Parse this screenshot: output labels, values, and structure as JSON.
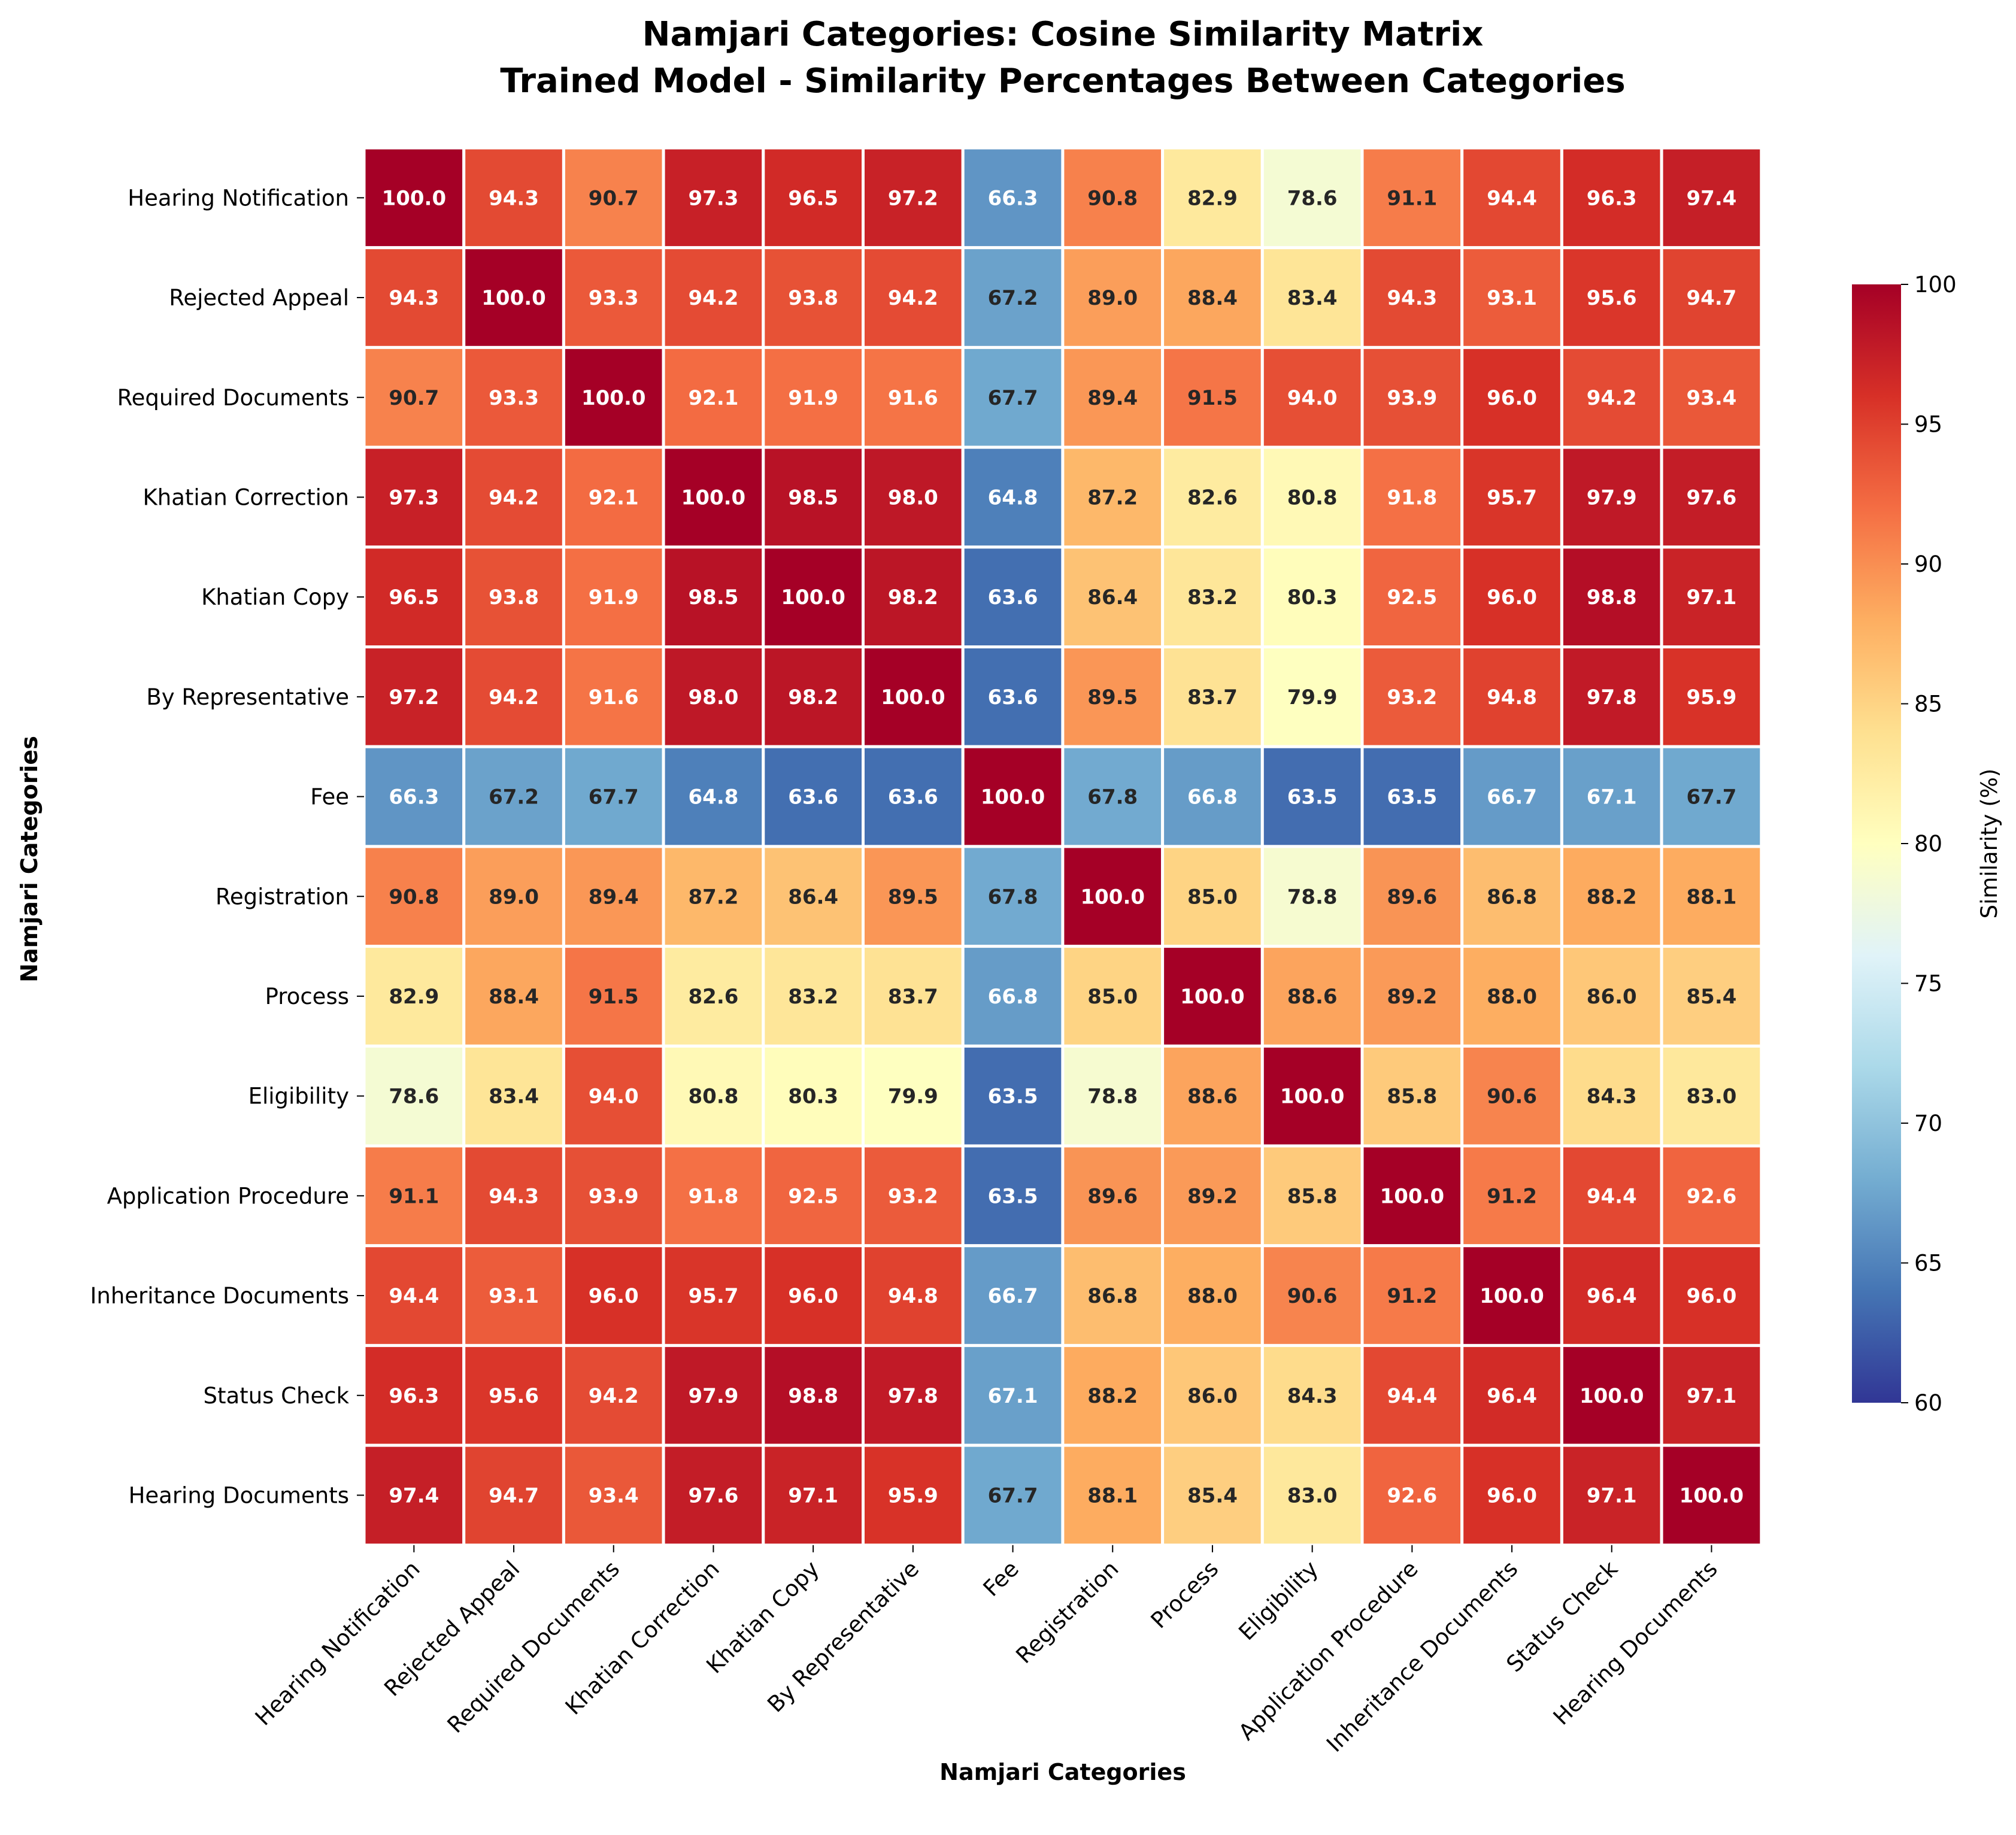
{
  "chart_data": {
    "type": "heatmap",
    "title": "Namjari Categories: Cosine Similarity Matrix",
    "subtitle": "Trained Model - Similarity Percentages Between Categories",
    "xlabel": "Namjari Categories",
    "ylabel": "Namjari Categories",
    "colorbar_label": "Similarity (%)",
    "colormap": "RdYlBu_r",
    "vmin": 60,
    "vmax": 100,
    "colorbar_ticks": [
      60,
      65,
      70,
      75,
      80,
      85,
      90,
      95,
      100
    ],
    "categories": [
      "Hearing Notification",
      "Rejected Appeal",
      "Required Documents",
      "Khatian Correction",
      "Khatian Copy",
      "By Representative",
      "Fee",
      "Registration",
      "Process",
      "Eligibility",
      "Application Procedure",
      "Inheritance Documents",
      "Status Check",
      "Hearing Documents"
    ],
    "values": [
      [
        100.0,
        94.3,
        90.7,
        97.3,
        96.5,
        97.2,
        66.3,
        90.8,
        82.9,
        78.6,
        91.1,
        94.4,
        96.3,
        97.4
      ],
      [
        94.3,
        100.0,
        93.3,
        94.2,
        93.8,
        94.2,
        67.2,
        89.0,
        88.4,
        83.4,
        94.3,
        93.1,
        95.6,
        94.7
      ],
      [
        90.7,
        93.3,
        100.0,
        92.1,
        91.9,
        91.6,
        67.7,
        89.4,
        91.5,
        94.0,
        93.9,
        96.0,
        94.2,
        93.4
      ],
      [
        97.3,
        94.2,
        92.1,
        100.0,
        98.5,
        98.0,
        64.8,
        87.2,
        82.6,
        80.8,
        91.8,
        95.7,
        97.9,
        97.6
      ],
      [
        96.5,
        93.8,
        91.9,
        98.5,
        100.0,
        98.2,
        63.6,
        86.4,
        83.2,
        80.3,
        92.5,
        96.0,
        98.8,
        97.1
      ],
      [
        97.2,
        94.2,
        91.6,
        98.0,
        98.2,
        100.0,
        63.6,
        89.5,
        83.7,
        79.9,
        93.2,
        94.8,
        97.8,
        95.9
      ],
      [
        66.3,
        67.2,
        67.7,
        64.8,
        63.6,
        63.6,
        100.0,
        67.8,
        66.8,
        63.5,
        63.5,
        66.7,
        67.1,
        67.7
      ],
      [
        90.8,
        89.0,
        89.4,
        87.2,
        86.4,
        89.5,
        67.8,
        100.0,
        85.0,
        78.8,
        89.6,
        86.8,
        88.2,
        88.1
      ],
      [
        82.9,
        88.4,
        91.5,
        82.6,
        83.2,
        83.7,
        66.8,
        85.0,
        100.0,
        88.6,
        89.2,
        88.0,
        86.0,
        85.4
      ],
      [
        78.6,
        83.4,
        94.0,
        80.8,
        80.3,
        79.9,
        63.5,
        78.8,
        88.6,
        100.0,
        85.8,
        90.6,
        84.3,
        83.0
      ],
      [
        91.1,
        94.3,
        93.9,
        91.8,
        92.5,
        93.2,
        63.5,
        89.6,
        89.2,
        85.8,
        100.0,
        91.2,
        94.4,
        92.6
      ],
      [
        94.4,
        93.1,
        96.0,
        95.7,
        96.0,
        94.8,
        66.7,
        86.8,
        88.0,
        90.6,
        91.2,
        100.0,
        96.4,
        96.0
      ],
      [
        96.3,
        95.6,
        94.2,
        97.9,
        98.8,
        97.8,
        67.1,
        88.2,
        86.0,
        84.3,
        94.4,
        96.4,
        100.0,
        97.1
      ],
      [
        97.4,
        94.7,
        93.4,
        97.6,
        97.1,
        95.9,
        67.7,
        88.1,
        85.4,
        83.0,
        92.6,
        96.0,
        97.1,
        100.0
      ]
    ]
  }
}
